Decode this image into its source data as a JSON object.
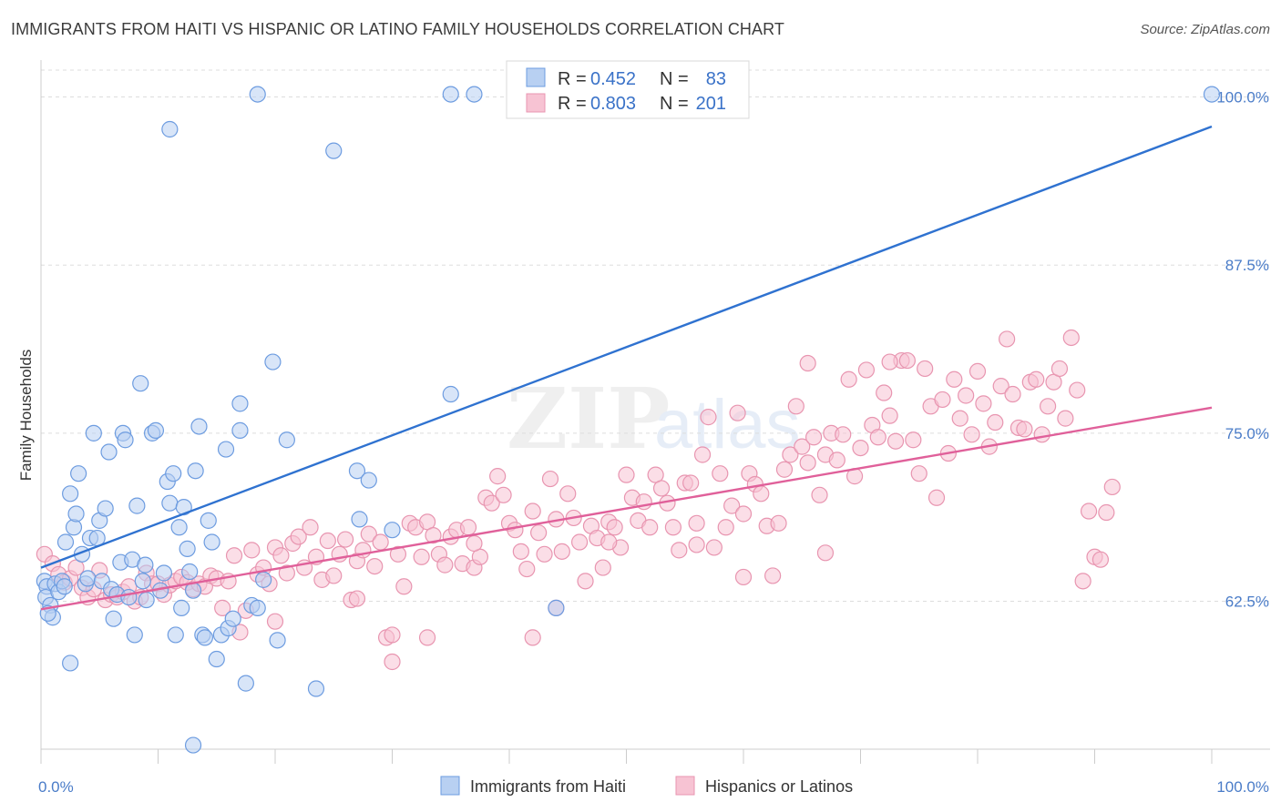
{
  "header": {
    "title": "IMMIGRANTS FROM HAITI VS HISPANIC OR LATINO FAMILY HOUSEHOLDS CORRELATION CHART",
    "source": "Source: ZipAtlas.com"
  },
  "watermark": {
    "zip": "ZIP",
    "atlas": "atlas"
  },
  "colors": {
    "blue_fill": "#b8d0f2",
    "blue_stroke": "#6d9ce0",
    "blue_line": "#2f72d0",
    "pink_fill": "#f7c3d3",
    "pink_stroke": "#e895b0",
    "pink_line": "#e0609a",
    "tick_text": "#4a7cc8",
    "grid": "#dddddd"
  },
  "legend": {
    "rows": [
      {
        "r_label": "R =",
        "r_value": "0.452",
        "n_label": "N =",
        "n_value": "83"
      },
      {
        "r_label": "R =",
        "r_value": "0.803",
        "n_label": "N =",
        "n_value": "201"
      }
    ]
  },
  "bottom_legend": [
    "Immigrants from Haiti",
    "Hispanics or Latinos"
  ],
  "chart_data": {
    "type": "scatter",
    "title": "IMMIGRANTS FROM HAITI VS HISPANIC OR LATINO FAMILY HOUSEHOLDS CORRELATION CHART",
    "ylabel": "Family Households",
    "xlabel": "",
    "xlim": [
      0,
      100
    ],
    "ylim": [
      51.5,
      102
    ],
    "x_tick_labels": [
      "0.0%",
      "100.0%"
    ],
    "y_ticks": [
      62.5,
      75.0,
      87.5,
      100.0
    ],
    "y_tick_labels": [
      "62.5%",
      "75.0%",
      "87.5%",
      "100.0%"
    ],
    "grid": true,
    "legend_position": "top-center",
    "series": [
      {
        "name": "Immigrants from Haiti",
        "r": 0.452,
        "n": 83,
        "trend": {
          "x": [
            0,
            100
          ],
          "y": [
            65.0,
            97.8
          ]
        },
        "points": [
          [
            0.3,
            64.0
          ],
          [
            0.5,
            63.6
          ],
          [
            0.4,
            62.8
          ],
          [
            0.8,
            62.2
          ],
          [
            1.0,
            61.3
          ],
          [
            0.6,
            61.6
          ],
          [
            1.2,
            63.8
          ],
          [
            1.5,
            63.2
          ],
          [
            1.8,
            64.0
          ],
          [
            2.0,
            63.6
          ],
          [
            2.1,
            66.9
          ],
          [
            2.5,
            70.5
          ],
          [
            2.8,
            68.0
          ],
          [
            3.0,
            69.0
          ],
          [
            3.2,
            72.0
          ],
          [
            3.5,
            66.0
          ],
          [
            3.8,
            63.8
          ],
          [
            4.0,
            64.2
          ],
          [
            4.2,
            67.2
          ],
          [
            4.5,
            75.0
          ],
          [
            4.8,
            67.2
          ],
          [
            5.0,
            68.5
          ],
          [
            5.2,
            64.0
          ],
          [
            5.5,
            69.4
          ],
          [
            5.8,
            73.6
          ],
          [
            6.0,
            63.4
          ],
          [
            6.2,
            61.2
          ],
          [
            6.5,
            63.0
          ],
          [
            6.8,
            65.4
          ],
          [
            7.0,
            75.0
          ],
          [
            7.2,
            74.5
          ],
          [
            7.5,
            62.8
          ],
          [
            7.8,
            65.6
          ],
          [
            8.0,
            60.0
          ],
          [
            8.2,
            69.6
          ],
          [
            8.5,
            78.7
          ],
          [
            8.7,
            64.0
          ],
          [
            8.9,
            65.2
          ],
          [
            9.0,
            62.6
          ],
          [
            9.5,
            75.0
          ],
          [
            9.8,
            75.2
          ],
          [
            10.2,
            63.3
          ],
          [
            10.5,
            64.6
          ],
          [
            10.8,
            71.4
          ],
          [
            11.0,
            69.8
          ],
          [
            11.3,
            72.0
          ],
          [
            11.5,
            60.0
          ],
          [
            11.8,
            68.0
          ],
          [
            12.0,
            62.0
          ],
          [
            12.2,
            69.5
          ],
          [
            12.5,
            66.4
          ],
          [
            12.7,
            64.7
          ],
          [
            13.0,
            63.3
          ],
          [
            13.2,
            72.2
          ],
          [
            13.5,
            75.5
          ],
          [
            13.8,
            60.0
          ],
          [
            14.0,
            59.8
          ],
          [
            14.3,
            68.5
          ],
          [
            14.6,
            66.9
          ],
          [
            15.0,
            58.2
          ],
          [
            15.4,
            60.0
          ],
          [
            15.8,
            73.8
          ],
          [
            16.0,
            60.5
          ],
          [
            16.4,
            61.2
          ],
          [
            17.0,
            77.2
          ],
          [
            17.0,
            75.2
          ],
          [
            17.5,
            56.4
          ],
          [
            18.0,
            62.2
          ],
          [
            18.5,
            62.0
          ],
          [
            19.0,
            64.1
          ],
          [
            19.8,
            80.3
          ],
          [
            20.2,
            59.6
          ],
          [
            21.0,
            74.5
          ],
          [
            23.5,
            56.0
          ],
          [
            25.0,
            96.0
          ],
          [
            27.0,
            72.2
          ],
          [
            27.2,
            68.6
          ],
          [
            28.0,
            71.5
          ],
          [
            30.0,
            67.8
          ],
          [
            35.0,
            100.2
          ],
          [
            37.0,
            100.2
          ],
          [
            11.0,
            97.6
          ],
          [
            18.5,
            100.2
          ],
          [
            13.0,
            51.8
          ],
          [
            2.5,
            57.9
          ],
          [
            35.0,
            77.9
          ],
          [
            44.0,
            62.0
          ],
          [
            100.0,
            100.2
          ]
        ]
      },
      {
        "name": "Hispanics or Latinos",
        "r": 0.803,
        "n": 201,
        "trend": {
          "x": [
            0,
            100
          ],
          "y": [
            61.9,
            76.9
          ]
        },
        "points": [
          [
            0.3,
            66.0
          ],
          [
            1.0,
            65.3
          ],
          [
            1.5,
            64.5
          ],
          [
            2.0,
            63.9
          ],
          [
            2.5,
            64.2
          ],
          [
            3.0,
            65.0
          ],
          [
            3.5,
            63.5
          ],
          [
            4.0,
            62.8
          ],
          [
            4.5,
            63.4
          ],
          [
            5.0,
            64.8
          ],
          [
            5.5,
            62.6
          ],
          [
            6.0,
            63.0
          ],
          [
            6.5,
            62.8
          ],
          [
            7.0,
            63.2
          ],
          [
            7.5,
            63.6
          ],
          [
            8.0,
            62.5
          ],
          [
            8.5,
            62.8
          ],
          [
            9.0,
            64.6
          ],
          [
            9.5,
            63.8
          ],
          [
            10.0,
            63.8
          ],
          [
            10.5,
            63.0
          ],
          [
            11.0,
            63.7
          ],
          [
            11.5,
            64.0
          ],
          [
            12.0,
            64.3
          ],
          [
            12.5,
            63.9
          ],
          [
            13.0,
            63.4
          ],
          [
            13.5,
            63.8
          ],
          [
            14.0,
            63.6
          ],
          [
            14.5,
            64.4
          ],
          [
            15.0,
            64.2
          ],
          [
            15.5,
            62.0
          ],
          [
            16.0,
            64.0
          ],
          [
            16.5,
            65.9
          ],
          [
            17.0,
            60.2
          ],
          [
            17.5,
            61.8
          ],
          [
            18.0,
            66.3
          ],
          [
            18.5,
            64.5
          ],
          [
            19.0,
            65.0
          ],
          [
            19.5,
            63.8
          ],
          [
            20.0,
            66.5
          ],
          [
            20.5,
            65.9
          ],
          [
            21.0,
            64.6
          ],
          [
            21.5,
            66.8
          ],
          [
            22.0,
            67.3
          ],
          [
            22.5,
            65.0
          ],
          [
            23.0,
            68.0
          ],
          [
            23.5,
            65.8
          ],
          [
            24.0,
            64.1
          ],
          [
            24.5,
            67.0
          ],
          [
            25.0,
            64.4
          ],
          [
            25.5,
            66.0
          ],
          [
            26.0,
            67.1
          ],
          [
            26.5,
            62.6
          ],
          [
            27.0,
            65.5
          ],
          [
            27.5,
            66.3
          ],
          [
            28.0,
            67.5
          ],
          [
            28.5,
            65.1
          ],
          [
            29.0,
            66.9
          ],
          [
            29.5,
            59.8
          ],
          [
            30.0,
            58.0
          ],
          [
            30.5,
            66.0
          ],
          [
            31.0,
            63.6
          ],
          [
            31.5,
            68.3
          ],
          [
            32.0,
            68.0
          ],
          [
            32.5,
            65.8
          ],
          [
            33.0,
            68.4
          ],
          [
            33.5,
            67.4
          ],
          [
            34.0,
            66.0
          ],
          [
            34.5,
            65.2
          ],
          [
            35.0,
            67.3
          ],
          [
            35.5,
            67.8
          ],
          [
            36.0,
            65.3
          ],
          [
            36.5,
            68.0
          ],
          [
            37.0,
            65.0
          ],
          [
            37.5,
            65.8
          ],
          [
            38.0,
            70.2
          ],
          [
            38.5,
            69.8
          ],
          [
            39.0,
            71.8
          ],
          [
            39.5,
            70.4
          ],
          [
            40.0,
            68.3
          ],
          [
            40.5,
            67.8
          ],
          [
            41.0,
            66.2
          ],
          [
            41.5,
            64.9
          ],
          [
            42.0,
            69.2
          ],
          [
            42.5,
            67.6
          ],
          [
            43.0,
            66.0
          ],
          [
            43.5,
            71.6
          ],
          [
            44.0,
            68.6
          ],
          [
            44.5,
            66.2
          ],
          [
            45.0,
            70.5
          ],
          [
            45.5,
            68.7
          ],
          [
            46.0,
            66.9
          ],
          [
            46.5,
            64.0
          ],
          [
            47.0,
            68.1
          ],
          [
            47.5,
            67.2
          ],
          [
            48.0,
            65.0
          ],
          [
            48.5,
            68.4
          ],
          [
            49.0,
            68.0
          ],
          [
            49.5,
            66.5
          ],
          [
            50.0,
            71.9
          ],
          [
            50.5,
            70.2
          ],
          [
            51.0,
            68.5
          ],
          [
            51.5,
            69.9
          ],
          [
            52.0,
            68.0
          ],
          [
            52.5,
            71.9
          ],
          [
            53.0,
            70.9
          ],
          [
            53.5,
            69.8
          ],
          [
            54.0,
            68.0
          ],
          [
            54.5,
            66.3
          ],
          [
            55.0,
            71.3
          ],
          [
            55.5,
            71.3
          ],
          [
            56.0,
            68.3
          ],
          [
            56.5,
            73.4
          ],
          [
            57.0,
            76.2
          ],
          [
            57.5,
            66.5
          ],
          [
            58.0,
            72.0
          ],
          [
            58.5,
            68.0
          ],
          [
            59.0,
            69.6
          ],
          [
            59.5,
            76.5
          ],
          [
            60.0,
            69.0
          ],
          [
            60.5,
            72.0
          ],
          [
            61.0,
            71.2
          ],
          [
            61.5,
            70.5
          ],
          [
            62.0,
            68.1
          ],
          [
            62.5,
            64.4
          ],
          [
            63.0,
            68.3
          ],
          [
            63.5,
            72.3
          ],
          [
            64.0,
            73.4
          ],
          [
            64.5,
            77.0
          ],
          [
            65.0,
            74.0
          ],
          [
            65.5,
            72.8
          ],
          [
            66.0,
            74.7
          ],
          [
            66.5,
            70.4
          ],
          [
            67.0,
            73.4
          ],
          [
            67.5,
            75.0
          ],
          [
            68.0,
            73.0
          ],
          [
            68.5,
            74.9
          ],
          [
            69.0,
            79.0
          ],
          [
            69.5,
            71.8
          ],
          [
            70.0,
            73.9
          ],
          [
            70.5,
            79.7
          ],
          [
            71.0,
            75.6
          ],
          [
            71.5,
            74.7
          ],
          [
            72.0,
            78.0
          ],
          [
            72.5,
            76.3
          ],
          [
            73.0,
            74.4
          ],
          [
            73.5,
            80.4
          ],
          [
            74.0,
            80.4
          ],
          [
            74.5,
            74.5
          ],
          [
            75.0,
            72.0
          ],
          [
            75.5,
            79.8
          ],
          [
            76.0,
            77.0
          ],
          [
            76.5,
            70.2
          ],
          [
            77.0,
            77.5
          ],
          [
            77.5,
            73.5
          ],
          [
            78.0,
            79.0
          ],
          [
            78.5,
            76.1
          ],
          [
            79.0,
            77.8
          ],
          [
            79.5,
            74.9
          ],
          [
            80.0,
            79.6
          ],
          [
            80.5,
            77.2
          ],
          [
            81.0,
            74.0
          ],
          [
            81.5,
            75.8
          ],
          [
            82.0,
            78.5
          ],
          [
            82.5,
            82.0
          ],
          [
            83.0,
            77.9
          ],
          [
            83.5,
            75.4
          ],
          [
            84.0,
            75.3
          ],
          [
            84.5,
            78.8
          ],
          [
            85.0,
            79.0
          ],
          [
            85.5,
            74.9
          ],
          [
            86.0,
            77.0
          ],
          [
            86.5,
            78.8
          ],
          [
            87.0,
            79.8
          ],
          [
            87.5,
            76.1
          ],
          [
            88.0,
            82.1
          ],
          [
            88.5,
            78.2
          ],
          [
            89.0,
            64.0
          ],
          [
            89.5,
            69.2
          ],
          [
            90.0,
            65.8
          ],
          [
            90.5,
            65.6
          ],
          [
            91.0,
            69.1
          ],
          [
            91.5,
            71.0
          ],
          [
            72.5,
            80.3
          ],
          [
            65.5,
            80.2
          ],
          [
            30.0,
            60.0
          ],
          [
            27.0,
            62.7
          ],
          [
            48.5,
            66.9
          ],
          [
            33.0,
            59.8
          ],
          [
            37.0,
            66.8
          ],
          [
            60.0,
            64.3
          ],
          [
            67.0,
            66.1
          ],
          [
            42.0,
            59.8
          ],
          [
            20.0,
            61.0
          ],
          [
            44.0,
            62.0
          ],
          [
            56.0,
            66.7
          ]
        ]
      }
    ]
  }
}
